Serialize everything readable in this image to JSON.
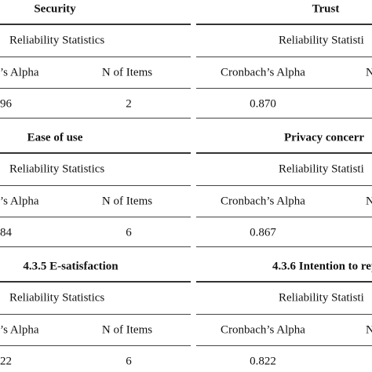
{
  "panels": [
    {
      "title": "Security",
      "subtitle": "Reliability Statistics",
      "headers": [
        "’s Alpha",
        "N of Items"
      ],
      "values": [
        "96",
        "2"
      ]
    },
    {
      "title": "Trust",
      "subtitle": "Reliability Statisti",
      "headers": [
        "Cronbach’s Alpha",
        "N"
      ],
      "values": [
        "0.870"
      ]
    },
    {
      "title": "Ease of use",
      "subtitle": "Reliability Statistics",
      "headers": [
        "’s Alpha",
        "N of Items"
      ],
      "values": [
        "84",
        "6"
      ]
    },
    {
      "title": "Privacy concerr",
      "subtitle": "Reliability Statisti",
      "headers": [
        "Cronbach’s Alpha",
        "N"
      ],
      "values": [
        "0.867"
      ]
    },
    {
      "title": "4.3.5 E-satisfaction",
      "subtitle": "Reliability Statistics",
      "headers": [
        "’s Alpha",
        "N of Items"
      ],
      "values": [
        "22",
        "6"
      ]
    },
    {
      "title": "4.3.6 Intention to repu",
      "subtitle": "Reliability Statisti",
      "headers": [
        "Cronbach’s Alpha",
        "N"
      ],
      "values": [
        "0.822"
      ]
    }
  ]
}
